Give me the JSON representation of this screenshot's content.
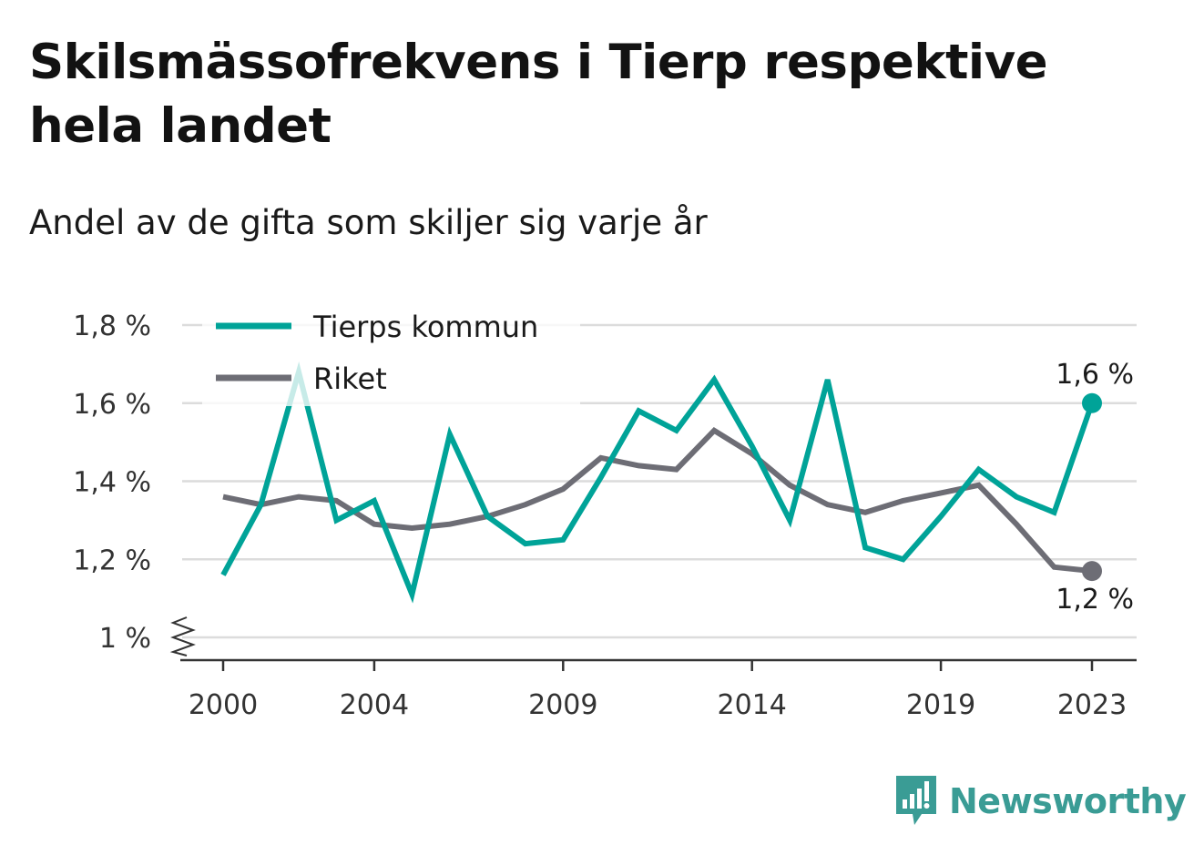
{
  "title": "Skilsmässofrekvens i Tierp respektive hela landet",
  "subtitle": "Andel av de gifta som skiljer sig varje år",
  "brand": {
    "name": "Newsworthy",
    "icon": "newsworthy-logo-icon",
    "color": "#3a9c95"
  },
  "chart_data": {
    "type": "line",
    "x": [
      2000,
      2001,
      2002,
      2003,
      2004,
      2005,
      2006,
      2007,
      2008,
      2009,
      2010,
      2011,
      2012,
      2013,
      2014,
      2015,
      2016,
      2017,
      2018,
      2019,
      2020,
      2021,
      2022,
      2023
    ],
    "x_ticks": [
      "2000",
      "2004",
      "2009",
      "2014",
      "2019",
      "2023"
    ],
    "y_ticks": [
      "1 %",
      "1,2 %",
      "1,4 %",
      "1,6 %",
      "1,8 %"
    ],
    "ylim": [
      1.0,
      1.8
    ],
    "axis_break": true,
    "grid": true,
    "legend_position": "top-left",
    "series": [
      {
        "name": "Tierps kommun",
        "color": "#00a398",
        "values": [
          1.16,
          1.34,
          1.68,
          1.3,
          1.35,
          1.11,
          1.52,
          1.31,
          1.24,
          1.25,
          1.41,
          1.58,
          1.53,
          1.66,
          1.49,
          1.3,
          1.66,
          1.23,
          1.2,
          1.31,
          1.43,
          1.36,
          1.32,
          1.6
        ],
        "end_label": "1,6 %"
      },
      {
        "name": "Riket",
        "color": "#6d6d75",
        "values": [
          1.36,
          1.34,
          1.36,
          1.35,
          1.29,
          1.28,
          1.29,
          1.31,
          1.34,
          1.38,
          1.46,
          1.44,
          1.43,
          1.53,
          1.47,
          1.39,
          1.34,
          1.32,
          1.35,
          1.37,
          1.39,
          1.29,
          1.18,
          1.17
        ],
        "end_label": "1,2 %"
      }
    ]
  }
}
